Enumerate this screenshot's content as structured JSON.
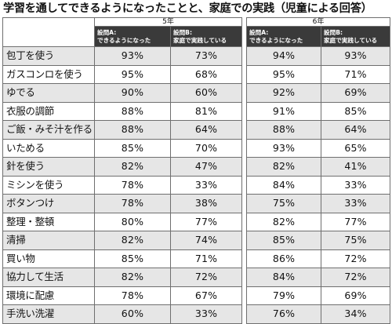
{
  "title": "学習を通してできるようになったことと、家庭での実践（児童による回答）",
  "grades": {
    "grade5": "5年",
    "grade6": "6年"
  },
  "questions": {
    "grade5_a": [
      "設問A:",
      "できるようになった"
    ],
    "grade5_b": [
      "設問B:",
      "家庭で実践している"
    ],
    "grade6_a": [
      "設問A:",
      "できるようになった"
    ],
    "grade6_b": [
      "設問B:",
      "家庭で実践している"
    ]
  },
  "rows": [
    {
      "item": "包丁を使う",
      "g5_a": "93%",
      "g5_b": "73%",
      "g6_a": "94%",
      "g6_b": "93%"
    },
    {
      "item": "ガスコンロを使う",
      "g5_a": "95%",
      "g5_b": "68%",
      "g6_a": "95%",
      "g6_b": "71%"
    },
    {
      "item": "ゆでる",
      "g5_a": "90%",
      "g5_b": "60%",
      "g6_a": "92%",
      "g6_b": "69%"
    },
    {
      "item": "衣服の調節",
      "g5_a": "88%",
      "g5_b": "81%",
      "g6_a": "91%",
      "g6_b": "85%"
    },
    {
      "item": "ご飯・みそ汁を作る",
      "g5_a": "88%",
      "g5_b": "64%",
      "g6_a": "88%",
      "g6_b": "64%"
    },
    {
      "item": "いためる",
      "g5_a": "85%",
      "g5_b": "70%",
      "g6_a": "93%",
      "g6_b": "65%"
    },
    {
      "item": "針を使う",
      "g5_a": "82%",
      "g5_b": "47%",
      "g6_a": "82%",
      "g6_b": "41%"
    },
    {
      "item": "ミシンを使う",
      "g5_a": "78%",
      "g5_b": "33%",
      "g6_a": "84%",
      "g6_b": "33%"
    },
    {
      "item": "ボタンつけ",
      "g5_a": "78%",
      "g5_b": "38%",
      "g6_a": "75%",
      "g6_b": "33%"
    },
    {
      "item": "整理・整頓",
      "g5_a": "80%",
      "g5_b": "77%",
      "g6_a": "82%",
      "g6_b": "77%"
    },
    {
      "item": "清掃",
      "g5_a": "82%",
      "g5_b": "74%",
      "g6_a": "85%",
      "g6_b": "75%"
    },
    {
      "item": "買い物",
      "g5_a": "85%",
      "g5_b": "71%",
      "g6_a": "86%",
      "g6_b": "72%"
    },
    {
      "item": "協力して生活",
      "g5_a": "82%",
      "g5_b": "72%",
      "g6_a": "84%",
      "g6_b": "72%"
    },
    {
      "item": "環境に配慮",
      "g5_a": "78%",
      "g5_b": "67%",
      "g6_a": "79%",
      "g6_b": "69%"
    },
    {
      "item": "手洗い洗濯",
      "g5_a": "60%",
      "g5_b": "33%",
      "g6_a": "76%",
      "g6_b": "34%"
    }
  ],
  "colors": {
    "header_dark": "#3a3a3a",
    "row_shade": "#e6e6e6",
    "grid": "#6f6f6f"
  }
}
